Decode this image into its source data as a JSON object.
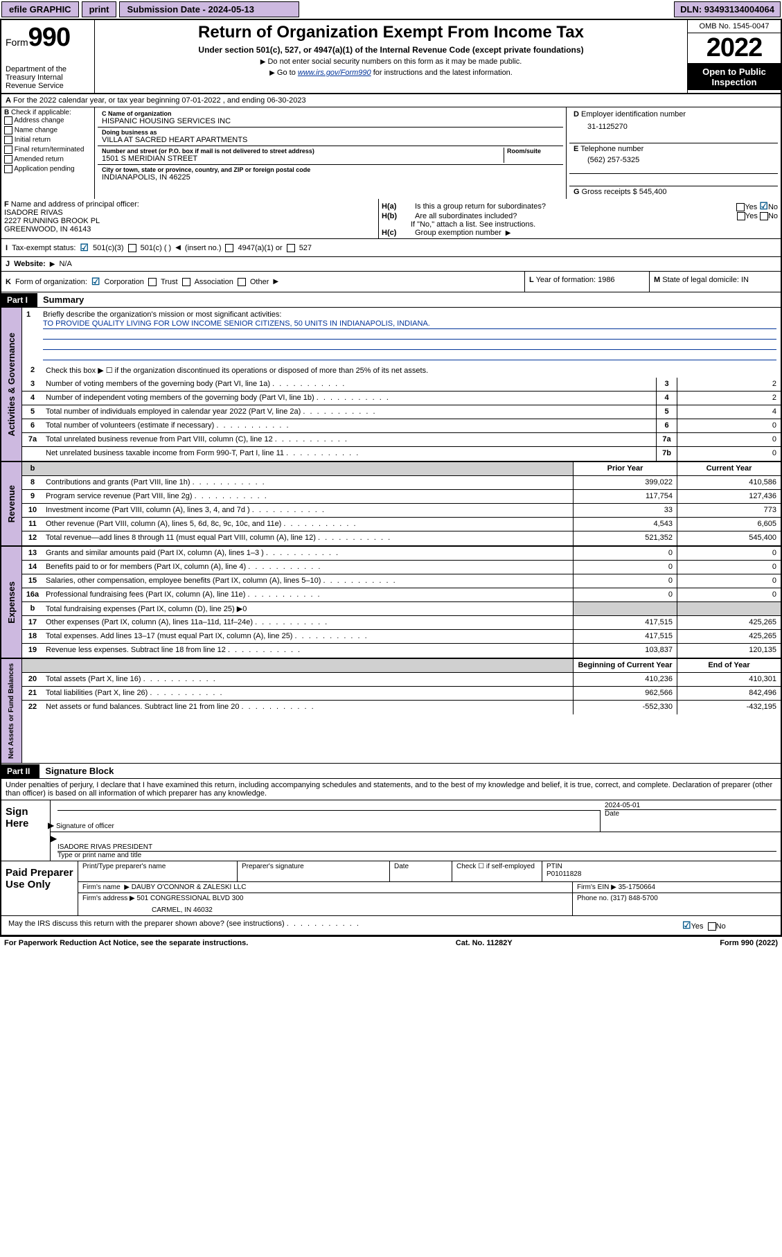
{
  "topbar": {
    "efile": "efile GRAPHIC",
    "print": "print",
    "sub_label": "Submission Date - 2024-05-13",
    "dln": "DLN: 93493134004064"
  },
  "header": {
    "form_text": "Form",
    "form_num": "990",
    "dept": "Department of the Treasury Internal Revenue Service",
    "title": "Return of Organization Exempt From Income Tax",
    "subtitle": "Under section 501(c), 527, or 4947(a)(1) of the Internal Revenue Code (except private foundations)",
    "note1": "Do not enter social security numbers on this form as it may be made public.",
    "note2_pre": "Go to ",
    "note2_link": "www.irs.gov/Form990",
    "note2_post": " for instructions and the latest information.",
    "omb": "OMB No. 1545-0047",
    "year": "2022",
    "inspection": "Open to Public Inspection"
  },
  "section_a": "For the 2022 calendar year, or tax year beginning 07-01-2022   , and ending 06-30-2023",
  "section_b": {
    "title": "Check if applicable:",
    "items": [
      "Address change",
      "Name change",
      "Initial return",
      "Final return/terminated",
      "Amended return",
      "Application pending"
    ]
  },
  "section_c": {
    "name_label": "Name of organization",
    "name": "HISPANIC HOUSING SERVICES INC",
    "dba_label": "Doing business as",
    "dba": "VILLA AT SACRED HEART APARTMENTS",
    "street_label": "Number and street (or P.O. box if mail is not delivered to street address)",
    "room_label": "Room/suite",
    "street": "1501 S MERIDIAN STREET",
    "city_label": "City or town, state or province, country, and ZIP or foreign postal code",
    "city": "INDIANAPOLIS, IN  46225"
  },
  "section_d": {
    "label": "Employer identification number",
    "value": "31-1125270"
  },
  "section_e": {
    "label": "Telephone number",
    "value": "(562) 257-5325"
  },
  "section_g": {
    "label": "Gross receipts $",
    "value": "545,400"
  },
  "section_f": {
    "label": "Name and address of principal officer:",
    "name": "ISADORE RIVAS",
    "addr1": "2227 RUNNING BROOK PL",
    "addr2": "GREENWOOD, IN  46143"
  },
  "section_h": {
    "ha": "Is this a group return for subordinates?",
    "hb": "Are all subordinates included?",
    "hb_note": "If \"No,\" attach a list. See instructions.",
    "hc": "Group exemption number"
  },
  "yes": "Yes",
  "no": "No",
  "row_i": {
    "label": "Tax-exempt status:",
    "c3": "501(c)(3)",
    "c": "501(c) (   )",
    "insert": "(insert no.)",
    "a1": "4947(a)(1) or",
    "s527": "527"
  },
  "row_j": {
    "label": "Website:",
    "value": "N/A"
  },
  "row_k": {
    "label": "Form of organization:",
    "corp": "Corporation",
    "trust": "Trust",
    "assoc": "Association",
    "other": "Other"
  },
  "row_l": {
    "label": "Year of formation:",
    "value": "1986"
  },
  "row_m": {
    "label": "State of legal domicile:",
    "value": "IN"
  },
  "part1": {
    "header": "Part I",
    "title": "Summary",
    "l1_pre": "Briefly describe the organization's mission or most significant activities:",
    "l1_mission": "TO PROVIDE QUALITY LIVING FOR LOW INCOME SENIOR CITIZENS, 50 UNITS IN INDIANAPOLIS, INDIANA.",
    "l2": "Check this box ▶ ☐ if the organization discontinued its operations or disposed of more than 25% of its net assets.",
    "lines_gov": [
      {
        "n": "3",
        "t": "Number of voting members of the governing body (Part VI, line 1a)",
        "b": "3",
        "v": "2"
      },
      {
        "n": "4",
        "t": "Number of independent voting members of the governing body (Part VI, line 1b)",
        "b": "4",
        "v": "2"
      },
      {
        "n": "5",
        "t": "Total number of individuals employed in calendar year 2022 (Part V, line 2a)",
        "b": "5",
        "v": "4"
      },
      {
        "n": "6",
        "t": "Total number of volunteers (estimate if necessary)",
        "b": "6",
        "v": "0"
      },
      {
        "n": "7a",
        "t": "Total unrelated business revenue from Part VIII, column (C), line 12",
        "b": "7a",
        "v": "0"
      },
      {
        "n": "",
        "t": "Net unrelated business taxable income from Form 990-T, Part I, line 11",
        "b": "7b",
        "v": "0"
      }
    ],
    "col_prior": "Prior Year",
    "col_current": "Current Year",
    "col_begin": "Beginning of Current Year",
    "col_end": "End of Year",
    "lines_rev": [
      {
        "n": "8",
        "t": "Contributions and grants (Part VIII, line 1h)",
        "p": "399,022",
        "c": "410,586"
      },
      {
        "n": "9",
        "t": "Program service revenue (Part VIII, line 2g)",
        "p": "117,754",
        "c": "127,436"
      },
      {
        "n": "10",
        "t": "Investment income (Part VIII, column (A), lines 3, 4, and 7d )",
        "p": "33",
        "c": "773"
      },
      {
        "n": "11",
        "t": "Other revenue (Part VIII, column (A), lines 5, 6d, 8c, 9c, 10c, and 11e)",
        "p": "4,543",
        "c": "6,605"
      },
      {
        "n": "12",
        "t": "Total revenue—add lines 8 through 11 (must equal Part VIII, column (A), line 12)",
        "p": "521,352",
        "c": "545,400"
      }
    ],
    "lines_exp": [
      {
        "n": "13",
        "t": "Grants and similar amounts paid (Part IX, column (A), lines 1–3 )",
        "p": "0",
        "c": "0"
      },
      {
        "n": "14",
        "t": "Benefits paid to or for members (Part IX, column (A), line 4)",
        "p": "0",
        "c": "0"
      },
      {
        "n": "15",
        "t": "Salaries, other compensation, employee benefits (Part IX, column (A), lines 5–10)",
        "p": "0",
        "c": "0"
      },
      {
        "n": "16a",
        "t": "Professional fundraising fees (Part IX, column (A), line 11e)",
        "p": "0",
        "c": "0"
      },
      {
        "n": "b",
        "t": "Total fundraising expenses (Part IX, column (D), line 25) ▶0",
        "p": "",
        "c": "",
        "grey": true
      },
      {
        "n": "17",
        "t": "Other expenses (Part IX, column (A), lines 11a–11d, 11f–24e)",
        "p": "417,515",
        "c": "425,265"
      },
      {
        "n": "18",
        "t": "Total expenses. Add lines 13–17 (must equal Part IX, column (A), line 25)",
        "p": "417,515",
        "c": "425,265"
      },
      {
        "n": "19",
        "t": "Revenue less expenses. Subtract line 18 from line 12",
        "p": "103,837",
        "c": "120,135"
      }
    ],
    "lines_net": [
      {
        "n": "20",
        "t": "Total assets (Part X, line 16)",
        "p": "410,236",
        "c": "410,301"
      },
      {
        "n": "21",
        "t": "Total liabilities (Part X, line 26)",
        "p": "962,566",
        "c": "842,496"
      },
      {
        "n": "22",
        "t": "Net assets or fund balances. Subtract line 21 from line 20",
        "p": "-552,330",
        "c": "-432,195"
      }
    ],
    "side_gov": "Activities & Governance",
    "side_rev": "Revenue",
    "side_exp": "Expenses",
    "side_net": "Net Assets or Fund Balances"
  },
  "part2": {
    "header": "Part II",
    "title": "Signature Block",
    "declaration": "Under penalties of perjury, I declare that I have examined this return, including accompanying schedules and statements, and to the best of my knowledge and belief, it is true, correct, and complete. Declaration of preparer (other than officer) is based on all information of which preparer has any knowledge.",
    "sign_here": "Sign Here",
    "sig_officer": "Signature of officer",
    "date": "Date",
    "sig_date": "2024-05-01",
    "officer_name": "ISADORE RIVAS  PRESIDENT",
    "typed_name": "Type or print name and title",
    "paid": "Paid Preparer Use Only",
    "prep_name_h": "Print/Type preparer's name",
    "prep_sig_h": "Preparer's signature",
    "date_h": "Date",
    "check_self": "Check ☐ if self-employed",
    "ptin_label": "PTIN",
    "ptin": "P01011828",
    "firm_name_l": "Firm's name",
    "firm_name": "DAUBY O'CONNOR & ZALESKI LLC",
    "firm_ein_l": "Firm's EIN",
    "firm_ein": "35-1750664",
    "firm_addr_l": "Firm's address",
    "firm_addr1": "501 CONGRESSIONAL BLVD 300",
    "firm_addr2": "CARMEL, IN  46032",
    "phone_l": "Phone no.",
    "phone": "(317) 848-5700",
    "discuss": "May the IRS discuss this return with the preparer shown above? (see instructions)"
  },
  "footer": {
    "paperwork": "For Paperwork Reduction Act Notice, see the separate instructions.",
    "cat": "Cat. No. 11282Y",
    "form": "Form 990 (2022)"
  },
  "letters": {
    "A": "A",
    "B": "B",
    "C": "C",
    "D": "D",
    "E": "E",
    "F": "F",
    "G": "G",
    "H_a": "H(a)",
    "H_b": "H(b)",
    "H_c": "H(c)",
    "I": "I",
    "J": "J",
    "K": "K",
    "L": "L",
    "M": "M"
  }
}
